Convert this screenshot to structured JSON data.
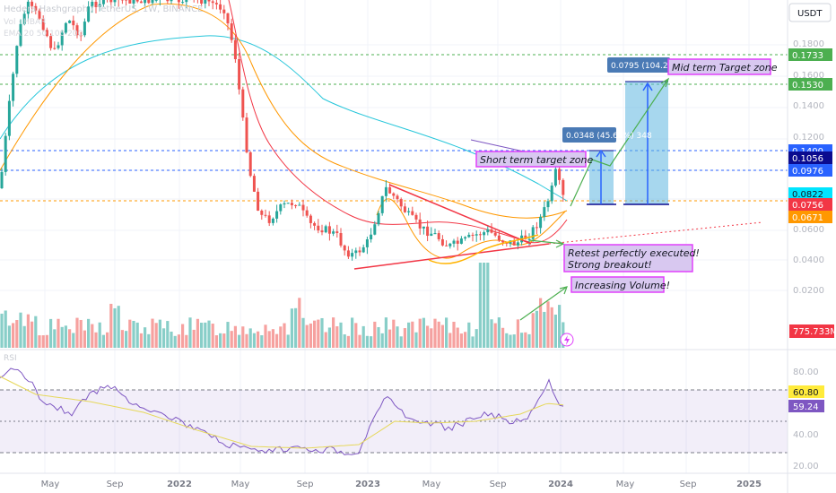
{
  "header": {
    "symbol": "Hedera Hashgraph / TetherUS, 1W, BINANCE",
    "ind1": "Vol · HBAR",
    "ind2": "EMA 20 50 100 200"
  },
  "currency_button": "USDT",
  "rsi_label": "RSI",
  "chart_data": {
    "type": "candlestick",
    "ylim": [
      0.0155,
      0.205
    ],
    "yscale": "log",
    "x_labels": [
      "May",
      "Sep",
      "2022",
      "May",
      "Sep",
      "2023",
      "May",
      "Sep",
      "2024",
      "May",
      "Sep",
      "2025"
    ],
    "price_ticks": [
      "0.1800",
      "0.1600",
      "0.1400",
      "0.1200",
      "0.1000",
      "0.0800",
      "0.0600",
      "0.0400",
      "0.0200",
      "0.1000"
    ],
    "price_tags": [
      {
        "value": "0.1733",
        "color": "#4caf50"
      },
      {
        "value": "0.1530",
        "color": "#4caf50"
      },
      {
        "value": "0.1400",
        "color": "#2962ff"
      },
      {
        "value": "0.1056",
        "color": "#0b0b8f"
      },
      {
        "value": "0.0976",
        "color": "#2962ff"
      },
      {
        "value": "0.0822",
        "color": "#00e5ff"
      },
      {
        "value": "0.0756",
        "color": "#f23645"
      },
      {
        "value": "0.0671",
        "color": "#ff9800"
      }
    ],
    "volume_tag": "775.733M",
    "rsi_ticks": [
      "80.00",
      "40.00",
      "20.00"
    ],
    "rsi_tags": [
      {
        "value": "60.80",
        "color": "#ffeb3b"
      },
      {
        "value": "59.24",
        "color": "#7e57c2"
      }
    ],
    "annotations": {
      "short_target": "Short term target zone",
      "mid_target": "Mid term Target zone",
      "retest_line1": "Retest perfectly executed!",
      "retest_line2": "Strong breakout!",
      "volume": "Increasing Volume!"
    },
    "measure_boxes": {
      "short": "0.0348 (45.61%) 348",
      "mid": "0.0795 (104.25%)"
    }
  }
}
